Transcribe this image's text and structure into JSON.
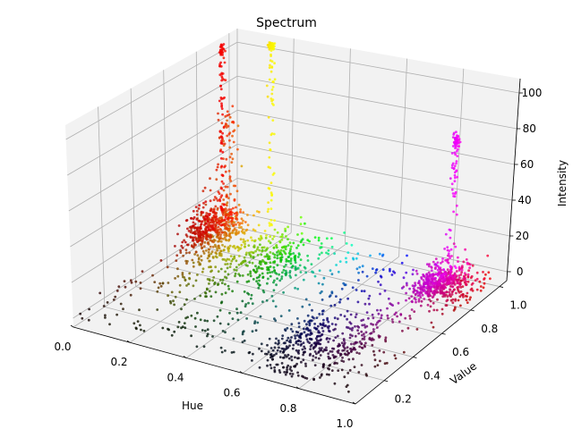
{
  "chart_data": {
    "type": "scatter",
    "projection": "3d",
    "title": "Spectrum",
    "xlabel": "Hue",
    "ylabel": "Value",
    "zlabel": "Intensity",
    "xlim": [
      0.0,
      1.0
    ],
    "ylim": [
      0.0,
      1.05
    ],
    "zlim": [
      -5,
      108
    ],
    "xticks": [
      0.0,
      0.2,
      0.4,
      0.6,
      0.8,
      1.0
    ],
    "xtick_labels": [
      "0.0",
      "0.2",
      "0.4",
      "0.6",
      "0.8",
      "1.0"
    ],
    "yticks": [
      0.2,
      0.4,
      0.6,
      0.8,
      1.0
    ],
    "ytick_labels": [
      "0.2",
      "0.4",
      "0.6",
      "0.8",
      "1.0"
    ],
    "zticks": [
      0,
      20,
      40,
      60,
      80,
      100
    ],
    "ztick_labels": [
      "0",
      "20",
      "40",
      "60",
      "80",
      "100"
    ],
    "grid": true,
    "legend": "none",
    "color_mapping": "hue and value of each point",
    "peaks": [
      {
        "hue": 0.0,
        "value": 0.95,
        "intensity": 100
      },
      {
        "hue": 0.16,
        "value": 0.98,
        "intensity": 106
      },
      {
        "hue": 0.83,
        "value": 0.97,
        "intensity": 73
      }
    ],
    "clusters": [
      {
        "hue_center": 0.06,
        "value_center": 0.85,
        "intensity_range": [
          0,
          30
        ]
      },
      {
        "hue_center": 0.33,
        "value_center": 0.65,
        "intensity_range": [
          0,
          10
        ]
      },
      {
        "hue_center": 0.67,
        "value_center": 0.3,
        "intensity_range": [
          0,
          10
        ]
      },
      {
        "hue_center": 0.88,
        "value_center": 0.8,
        "intensity_range": [
          0,
          15
        ]
      }
    ],
    "colors": {
      "pane": "#f2f2f2",
      "grid": "#b0b0b0"
    }
  }
}
